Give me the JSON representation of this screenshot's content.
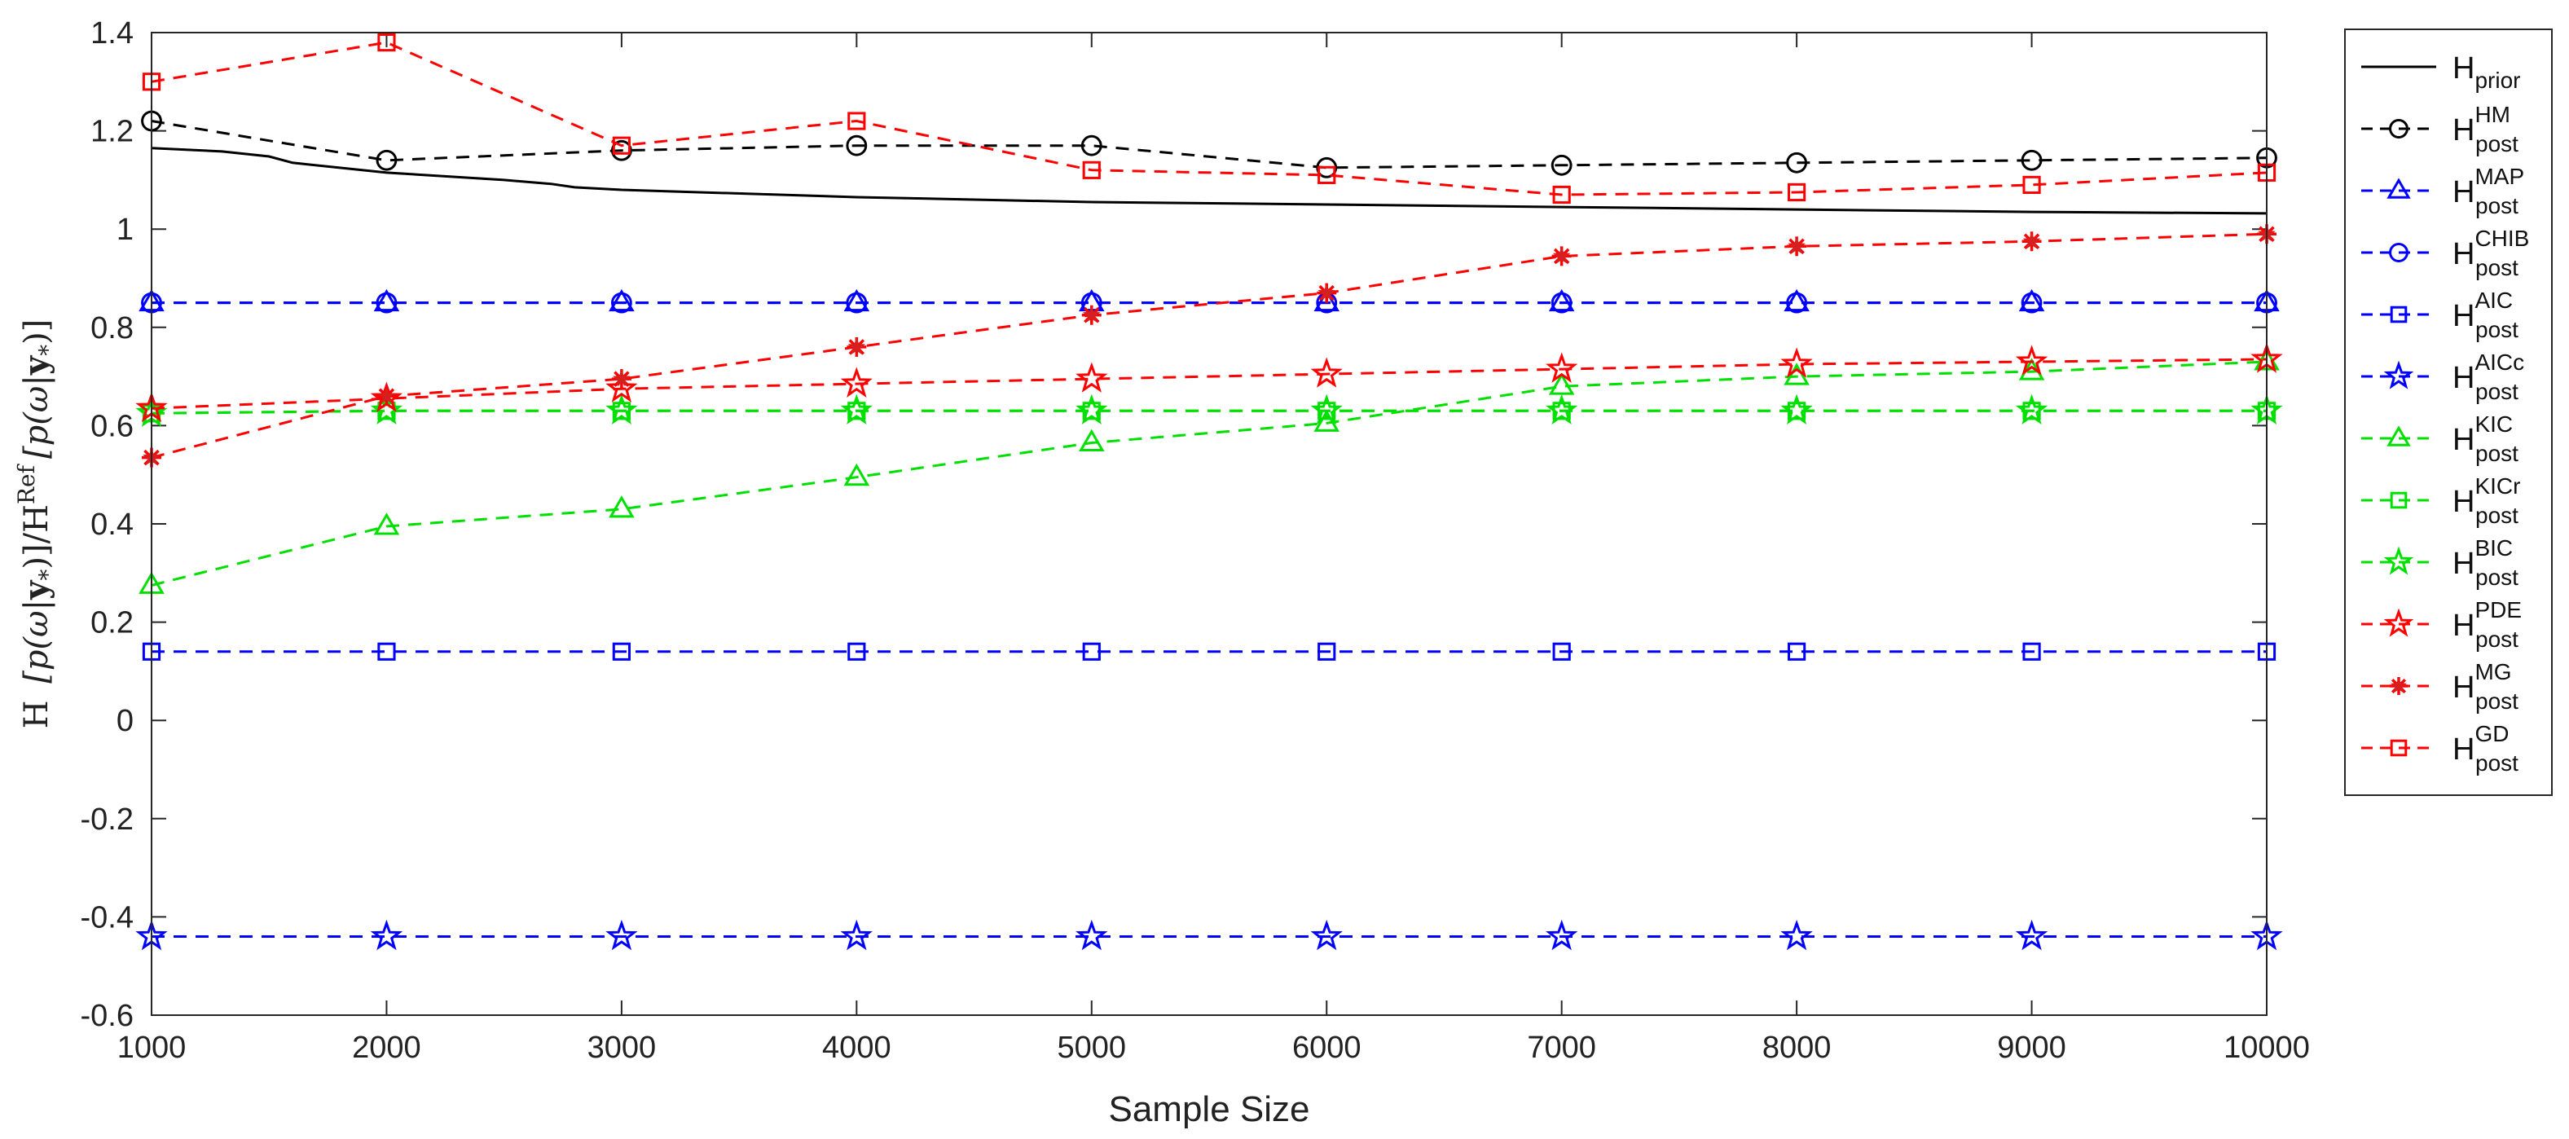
{
  "chart_data": {
    "type": "line",
    "xlabel": "Sample Size",
    "ylabel": "H [p(ω|y*)] / H^Ref [p(ω|y*)]",
    "ylabel_parts": {
      "h1": "H",
      "p1": "[p(ω|",
      "y1": "y",
      "s1": "*",
      "c1": ")]",
      "slash": "/H",
      "ref": "Ref",
      "p2": "[p(ω|",
      "y2": "y",
      "s2": "*",
      "c2": ")]"
    },
    "xlim": [
      1000,
      10000
    ],
    "ylim": [
      -0.6,
      1.4
    ],
    "xticks": [
      1000,
      2000,
      3000,
      4000,
      5000,
      6000,
      7000,
      8000,
      9000,
      10000
    ],
    "yticks": [
      -0.6,
      -0.4,
      -0.2,
      0,
      0.2,
      0.4,
      0.6,
      0.8,
      1,
      1.2,
      1.4
    ],
    "ytick_labels": [
      "-0.6",
      "-0.4",
      "-0.2",
      "0",
      "0.2",
      "0.4",
      "0.6",
      "0.8",
      "1",
      "1.2",
      "1.4"
    ],
    "x": [
      1000,
      2000,
      3000,
      4000,
      5000,
      6000,
      7000,
      8000,
      9000,
      10000
    ],
    "legend_position": "outside-right",
    "prior_curve": {
      "x": [
        1000,
        1300,
        1500,
        1600,
        2000,
        2500,
        2700,
        2800,
        3000,
        4000,
        5000,
        6000,
        7000,
        8000,
        9000,
        10000
      ],
      "values": [
        1.165,
        1.158,
        1.148,
        1.135,
        1.115,
        1.1,
        1.092,
        1.085,
        1.08,
        1.065,
        1.055,
        1.05,
        1.045,
        1.04,
        1.035,
        1.032
      ]
    },
    "series": [
      {
        "name": "H",
        "sub": "prior",
        "sup": "",
        "color": "#000000",
        "marker": "none",
        "dashed": false
      },
      {
        "name": "H",
        "sub": "post",
        "sup": "HM",
        "color": "#000000",
        "marker": "circle",
        "dashed": true,
        "values": [
          1.22,
          1.14,
          1.16,
          1.17,
          1.17,
          1.125,
          1.13,
          1.135,
          1.14,
          1.145
        ]
      },
      {
        "name": "H",
        "sub": "post",
        "sup": "MAP",
        "color": "#0000ff",
        "marker": "triangle",
        "dashed": true,
        "values": [
          0.85,
          0.85,
          0.85,
          0.85,
          0.85,
          0.85,
          0.85,
          0.85,
          0.85,
          0.85
        ]
      },
      {
        "name": "H",
        "sub": "post",
        "sup": "CHIB",
        "color": "#0000ff",
        "marker": "circle",
        "dashed": true,
        "values": [
          0.85,
          0.85,
          0.85,
          0.85,
          0.85,
          0.85,
          0.85,
          0.85,
          0.85,
          0.85
        ]
      },
      {
        "name": "H",
        "sub": "post",
        "sup": "AIC",
        "color": "#0000ff",
        "marker": "square",
        "dashed": true,
        "values": [
          0.14,
          0.14,
          0.14,
          0.14,
          0.14,
          0.14,
          0.14,
          0.14,
          0.14,
          0.14
        ]
      },
      {
        "name": "H",
        "sub": "post",
        "sup": "AICc",
        "color": "#0000ff",
        "marker": "star5",
        "dashed": true,
        "values": [
          -0.44,
          -0.44,
          -0.44,
          -0.44,
          -0.44,
          -0.44,
          -0.44,
          -0.44,
          -0.44,
          -0.44
        ]
      },
      {
        "name": "H",
        "sub": "post",
        "sup": "KIC",
        "color": "#00e000",
        "marker": "triangle",
        "dashed": true,
        "values": [
          0.275,
          0.395,
          0.43,
          0.495,
          0.565,
          0.605,
          0.68,
          0.7,
          0.71,
          0.73
        ]
      },
      {
        "name": "H",
        "sub": "post",
        "sup": "KICr",
        "color": "#00e000",
        "marker": "square",
        "dashed": true,
        "values": [
          0.625,
          0.63,
          0.63,
          0.63,
          0.63,
          0.63,
          0.63,
          0.63,
          0.63,
          0.63
        ]
      },
      {
        "name": "H",
        "sub": "post",
        "sup": "BIC",
        "color": "#00e000",
        "marker": "star5",
        "dashed": true,
        "values": [
          0.625,
          0.63,
          0.63,
          0.63,
          0.63,
          0.63,
          0.63,
          0.63,
          0.63,
          0.63
        ]
      },
      {
        "name": "H",
        "sub": "post",
        "sup": "PDE",
        "color": "#ff0000",
        "marker": "star5",
        "dashed": true,
        "values": [
          0.635,
          0.655,
          0.675,
          0.685,
          0.695,
          0.705,
          0.715,
          0.725,
          0.73,
          0.735
        ]
      },
      {
        "name": "H",
        "sub": "post",
        "sup": "MG",
        "color": "#ff0000",
        "marker": "asterisk",
        "dashed": true,
        "values": [
          0.535,
          0.66,
          0.695,
          0.76,
          0.825,
          0.87,
          0.945,
          0.965,
          0.975,
          0.99
        ]
      },
      {
        "name": "H",
        "sub": "post",
        "sup": "GD",
        "color": "#ff0000",
        "marker": "square",
        "dashed": true,
        "values": [
          1.3,
          1.38,
          1.17,
          1.22,
          1.12,
          1.11,
          1.07,
          1.075,
          1.09,
          1.115
        ]
      }
    ]
  }
}
